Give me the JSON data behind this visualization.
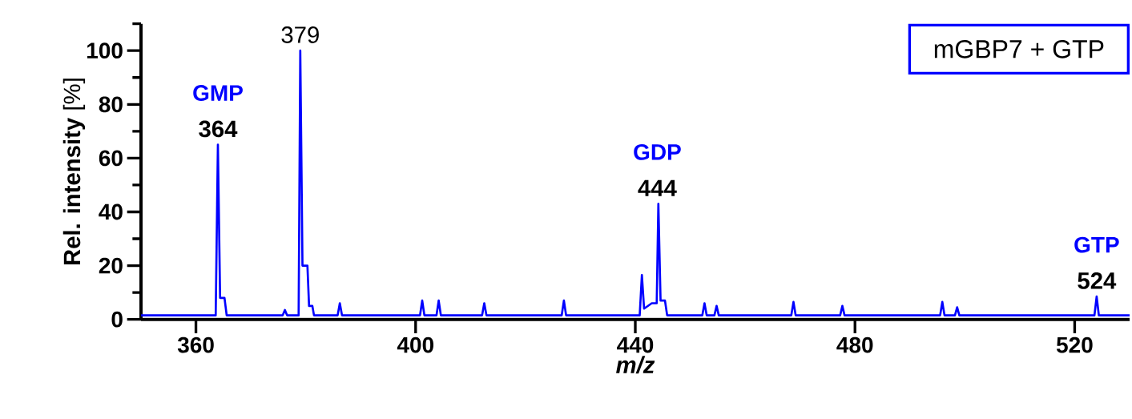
{
  "chart_data": {
    "type": "line",
    "xlabel": "m/z",
    "ylabel": "**Rel. intensity** [%]",
    "xlim": [
      350,
      530
    ],
    "xticks": [
      360,
      400,
      440,
      480,
      520
    ],
    "ylim": [
      0,
      110
    ],
    "yticks": [
      0,
      {
        "value": 10,
        "label": null
      },
      20,
      {
        "value": 30,
        "label": null
      },
      40,
      {
        "value": 50,
        "label": null
      },
      60,
      {
        "value": 70,
        "label": null
      },
      80,
      {
        "value": 90,
        "label": null
      },
      100,
      {
        "value": 110,
        "label": null
      }
    ],
    "marker": "none",
    "line_style": "solid",
    "series": [
      {
        "color": "#0000ff",
        "x": [
          350,
          363.6,
          364,
          364.4,
          365.2,
          365.6,
          375.8,
          376.2,
          376.6,
          378.7,
          379,
          379.4,
          380.3,
          380.6,
          381.2,
          381.5,
          385.8,
          386.2,
          386.6,
          400.8,
          401.2,
          401.6,
          403.8,
          404.2,
          404.6,
          412.1,
          412.5,
          412.9,
          426.6,
          427,
          427.4,
          440.8,
          441.2,
          441.6,
          443,
          443.9,
          444.2,
          444.6,
          445.4,
          445.8,
          452.2,
          452.6,
          453,
          454.4,
          454.8,
          455.2,
          468.4,
          468.8,
          469.2,
          477.3,
          477.7,
          478.1,
          495.5,
          495.9,
          496.3,
          498.2,
          498.6,
          499,
          523.6,
          524,
          524.4,
          530
        ],
        "values": [
          1.5,
          1.5,
          65,
          8,
          8,
          1.5,
          1.5,
          3.5,
          1.5,
          1.5,
          100,
          20,
          20,
          5,
          5,
          1.5,
          1.5,
          6,
          1.5,
          1.5,
          7,
          1.5,
          1.5,
          7,
          1.5,
          1.5,
          6,
          1.5,
          1.5,
          7,
          1.5,
          1.5,
          16.5,
          4,
          6,
          6,
          43,
          7,
          7,
          1.5,
          1.5,
          6,
          1.5,
          1.5,
          5,
          1.5,
          1.5,
          6.5,
          1.5,
          1.5,
          5,
          1.5,
          1.5,
          6.5,
          1.5,
          1.5,
          4.5,
          1.5,
          1.5,
          8.5,
          1.5,
          1.5
        ]
      }
    ],
    "annotations": [
      {
        "text": "379",
        "x": 379,
        "y": 100
      },
      {
        "text": "364",
        "x": 364,
        "y": 65
      },
      {
        "text": "GMP",
        "x": 364,
        "y": 65
      },
      {
        "text": "444",
        "x": 444,
        "y": 43
      },
      {
        "text": "GDP",
        "x": 444,
        "y": 43
      },
      {
        "text": "524",
        "x": 524,
        "y": 8.5
      },
      {
        "text": "GTP",
        "x": 524,
        "y": 8.5
      },
      "mGBP7 + GTP"
    ]
  }
}
